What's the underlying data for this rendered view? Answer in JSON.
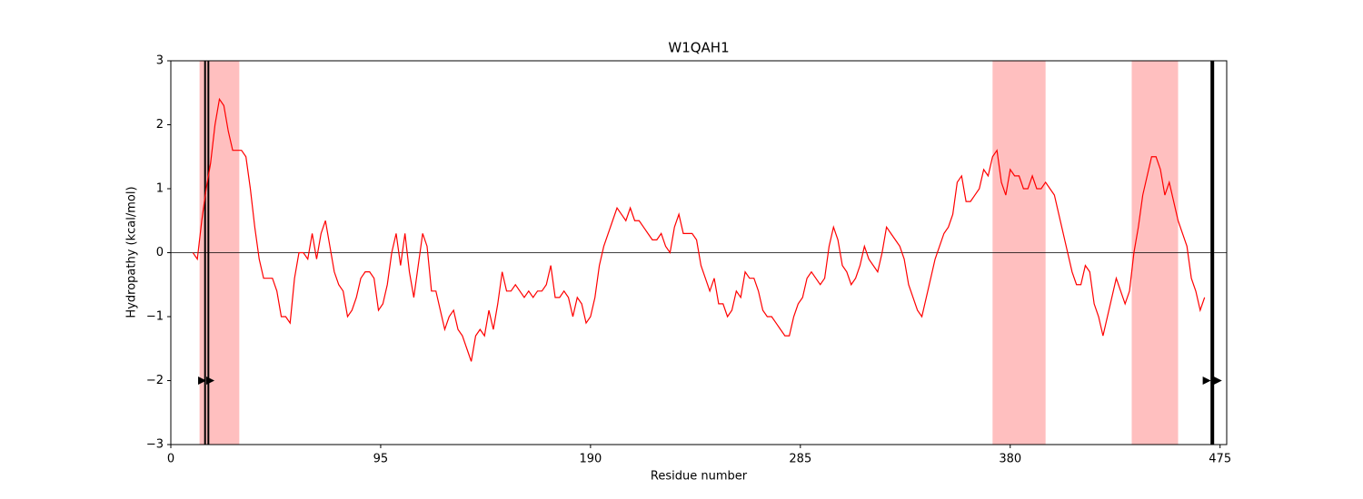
{
  "chart_data": {
    "type": "line",
    "title": "W1QAH1",
    "x_label": "Residue number",
    "y_label": "Hydropathy (kcal/mol)",
    "xlim": [
      0,
      478
    ],
    "ylim": [
      -3,
      3
    ],
    "xticks": [
      0,
      95,
      190,
      285,
      380,
      475
    ],
    "yticks": [
      {
        "value": -3,
        "label": "−3"
      },
      {
        "value": -2,
        "label": "−2"
      },
      {
        "value": -1,
        "label": "−1"
      },
      0,
      1,
      2,
      3
    ],
    "hline": 0,
    "shaded_regions": [
      [
        13,
        31
      ],
      [
        372,
        396
      ],
      [
        435,
        456
      ]
    ],
    "region_color": "#ffbfbf",
    "vlines": [
      15.5,
      17,
      471.5
    ],
    "thick_vlines": [
      471.5
    ],
    "markers": {
      "x": [
        14,
        17.7,
        468.8,
        473.8
      ],
      "y": [
        -2,
        -2,
        -2,
        -2
      ]
    },
    "series": [
      {
        "color": "#ff0000",
        "x": [
          10,
          12,
          14,
          16,
          18,
          20,
          22,
          24,
          26,
          28,
          30,
          32,
          34,
          36,
          38,
          40,
          42,
          44,
          46,
          48,
          50,
          52,
          54,
          56,
          58,
          60,
          62,
          64,
          66,
          68,
          70,
          72,
          74,
          76,
          78,
          80,
          82,
          84,
          86,
          88,
          90,
          92,
          94,
          96,
          98,
          100,
          102,
          104,
          106,
          108,
          110,
          112,
          114,
          116,
          118,
          120,
          122,
          124,
          126,
          128,
          130,
          132,
          134,
          136,
          138,
          140,
          142,
          144,
          146,
          148,
          150,
          152,
          154,
          156,
          158,
          160,
          162,
          164,
          166,
          168,
          170,
          172,
          174,
          176,
          178,
          180,
          182,
          184,
          186,
          188,
          190,
          192,
          194,
          196,
          198,
          200,
          202,
          204,
          206,
          208,
          210,
          212,
          214,
          216,
          218,
          220,
          222,
          224,
          226,
          228,
          230,
          232,
          234,
          236,
          238,
          240,
          242,
          244,
          246,
          248,
          250,
          252,
          254,
          256,
          258,
          260,
          262,
          264,
          266,
          268,
          270,
          272,
          274,
          276,
          278,
          280,
          282,
          284,
          286,
          288,
          290,
          292,
          294,
          296,
          298,
          300,
          302,
          304,
          306,
          308,
          310,
          312,
          314,
          316,
          318,
          320,
          322,
          324,
          326,
          328,
          330,
          332,
          334,
          336,
          338,
          340,
          342,
          344,
          346,
          348,
          350,
          352,
          354,
          356,
          358,
          360,
          362,
          364,
          366,
          368,
          370,
          372,
          374,
          376,
          378,
          380,
          382,
          384,
          386,
          388,
          390,
          392,
          394,
          396,
          398,
          400,
          402,
          404,
          406,
          408,
          410,
          412,
          414,
          416,
          418,
          420,
          422,
          424,
          426,
          428,
          430,
          432,
          434,
          436,
          438,
          440,
          442,
          444,
          446,
          448,
          450,
          452,
          454,
          456,
          458,
          460,
          462,
          464,
          466,
          468
        ],
        "values": [
          0,
          -0.1,
          0.5,
          1.0,
          1.4,
          2.0,
          2.4,
          2.3,
          1.9,
          1.6,
          1.6,
          1.6,
          1.5,
          1.0,
          0.4,
          -0.1,
          -0.4,
          -0.4,
          -0.4,
          -0.6,
          -1.0,
          -1.0,
          -1.1,
          -0.4,
          0.0,
          0.0,
          -0.1,
          0.3,
          -0.1,
          0.3,
          0.5,
          0.1,
          -0.3,
          -0.5,
          -0.6,
          -1.0,
          -0.9,
          -0.7,
          -0.4,
          -0.3,
          -0.3,
          -0.4,
          -0.9,
          -0.8,
          -0.5,
          0.0,
          0.3,
          -0.2,
          0.3,
          -0.3,
          -0.7,
          -0.2,
          0.3,
          0.1,
          -0.6,
          -0.6,
          -0.9,
          -1.2,
          -1.0,
          -0.9,
          -1.2,
          -1.3,
          -1.5,
          -1.7,
          -1.3,
          -1.2,
          -1.3,
          -0.9,
          -1.2,
          -0.8,
          -0.3,
          -0.6,
          -0.6,
          -0.5,
          -0.6,
          -0.7,
          -0.6,
          -0.7,
          -0.6,
          -0.6,
          -0.5,
          -0.2,
          -0.7,
          -0.7,
          -0.6,
          -0.7,
          -1.0,
          -0.7,
          -0.8,
          -1.1,
          -1.0,
          -0.7,
          -0.2,
          0.1,
          0.3,
          0.5,
          0.7,
          0.6,
          0.5,
          0.7,
          0.5,
          0.5,
          0.4,
          0.3,
          0.2,
          0.2,
          0.3,
          0.1,
          0.0,
          0.4,
          0.6,
          0.3,
          0.3,
          0.3,
          0.2,
          -0.2,
          -0.4,
          -0.6,
          -0.4,
          -0.8,
          -0.8,
          -1.0,
          -0.9,
          -0.6,
          -0.7,
          -0.3,
          -0.4,
          -0.4,
          -0.6,
          -0.9,
          -1.0,
          -1.0,
          -1.1,
          -1.2,
          -1.3,
          -1.3,
          -1.0,
          -0.8,
          -0.7,
          -0.4,
          -0.3,
          -0.4,
          -0.5,
          -0.4,
          0.1,
          0.4,
          0.2,
          -0.2,
          -0.3,
          -0.5,
          -0.4,
          -0.2,
          0.1,
          -0.1,
          -0.2,
          -0.3,
          0.0,
          0.4,
          0.3,
          0.2,
          0.1,
          -0.1,
          -0.5,
          -0.7,
          -0.9,
          -1.0,
          -0.7,
          -0.4,
          -0.1,
          0.1,
          0.3,
          0.4,
          0.6,
          1.1,
          1.2,
          0.8,
          0.8,
          0.9,
          1.0,
          1.3,
          1.2,
          1.5,
          1.6,
          1.1,
          0.9,
          1.3,
          1.2,
          1.2,
          1.0,
          1.0,
          1.2,
          1.0,
          1.0,
          1.1,
          1.0,
          0.9,
          0.6,
          0.3,
          0.0,
          -0.3,
          -0.5,
          -0.5,
          -0.2,
          -0.3,
          -0.8,
          -1.0,
          -1.3,
          -1.0,
          -0.7,
          -0.4,
          -0.6,
          -0.8,
          -0.6,
          0.0,
          0.4,
          0.9,
          1.2,
          1.5,
          1.5,
          1.3,
          0.9,
          1.1,
          0.8,
          0.5,
          0.3,
          0.1,
          -0.4,
          -0.6,
          -0.9,
          -0.7
        ]
      }
    ]
  }
}
